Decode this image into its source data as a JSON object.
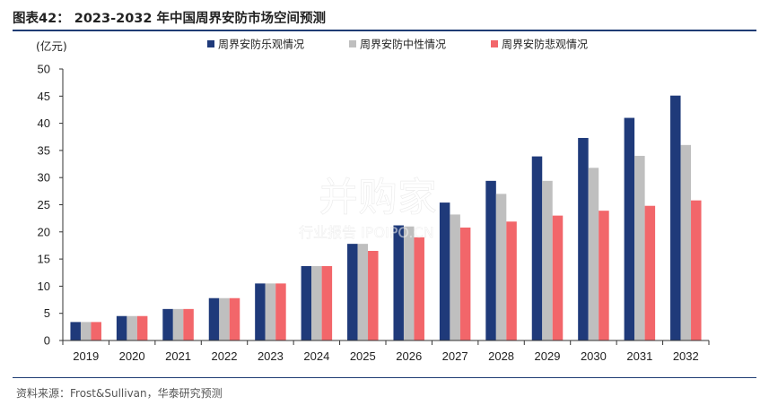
{
  "header": {
    "title": "图表42： 2023-2032 年中国周界安防市场空间预测"
  },
  "footer": {
    "source": "资料来源：Frost&Sullivan，华泰研究预测"
  },
  "watermark": {
    "line1": "并购家",
    "line2": "行业报告 IPOIPO.CN"
  },
  "colors": {
    "optimistic": "#1f3a7a",
    "neutral": "#bfbfbf",
    "pessimistic": "#f2666a",
    "rule": "#1f3c74"
  },
  "chart_data": {
    "type": "bar",
    "unit_label": "(亿元)",
    "ylim": [
      0,
      50
    ],
    "yticks": [
      0,
      5,
      10,
      15,
      20,
      25,
      30,
      35,
      40,
      45,
      50
    ],
    "grid": false,
    "legend_position": "top",
    "categories": [
      "2019",
      "2020",
      "2021",
      "2022",
      "2023",
      "2024",
      "2025",
      "2026",
      "2027",
      "2028",
      "2029",
      "2030",
      "2031",
      "2032"
    ],
    "series": [
      {
        "name": "周界安防乐观情况",
        "color": "#1f3a7a",
        "values": [
          3.4,
          4.5,
          5.8,
          7.8,
          10.5,
          13.7,
          17.8,
          21.2,
          25.4,
          29.4,
          33.9,
          37.3,
          41.0,
          45.1
        ]
      },
      {
        "name": "周界安防中性情况",
        "color": "#bfbfbf",
        "values": [
          3.4,
          4.5,
          5.8,
          7.8,
          10.5,
          13.7,
          17.8,
          21.0,
          23.2,
          27.0,
          29.4,
          31.8,
          34.0,
          36.0
        ]
      },
      {
        "name": "周界安防悲观情况",
        "color": "#f2666a",
        "values": [
          3.4,
          4.5,
          5.8,
          7.8,
          10.5,
          13.7,
          16.5,
          19.0,
          20.8,
          21.9,
          23.0,
          23.9,
          24.8,
          25.8
        ]
      }
    ]
  }
}
